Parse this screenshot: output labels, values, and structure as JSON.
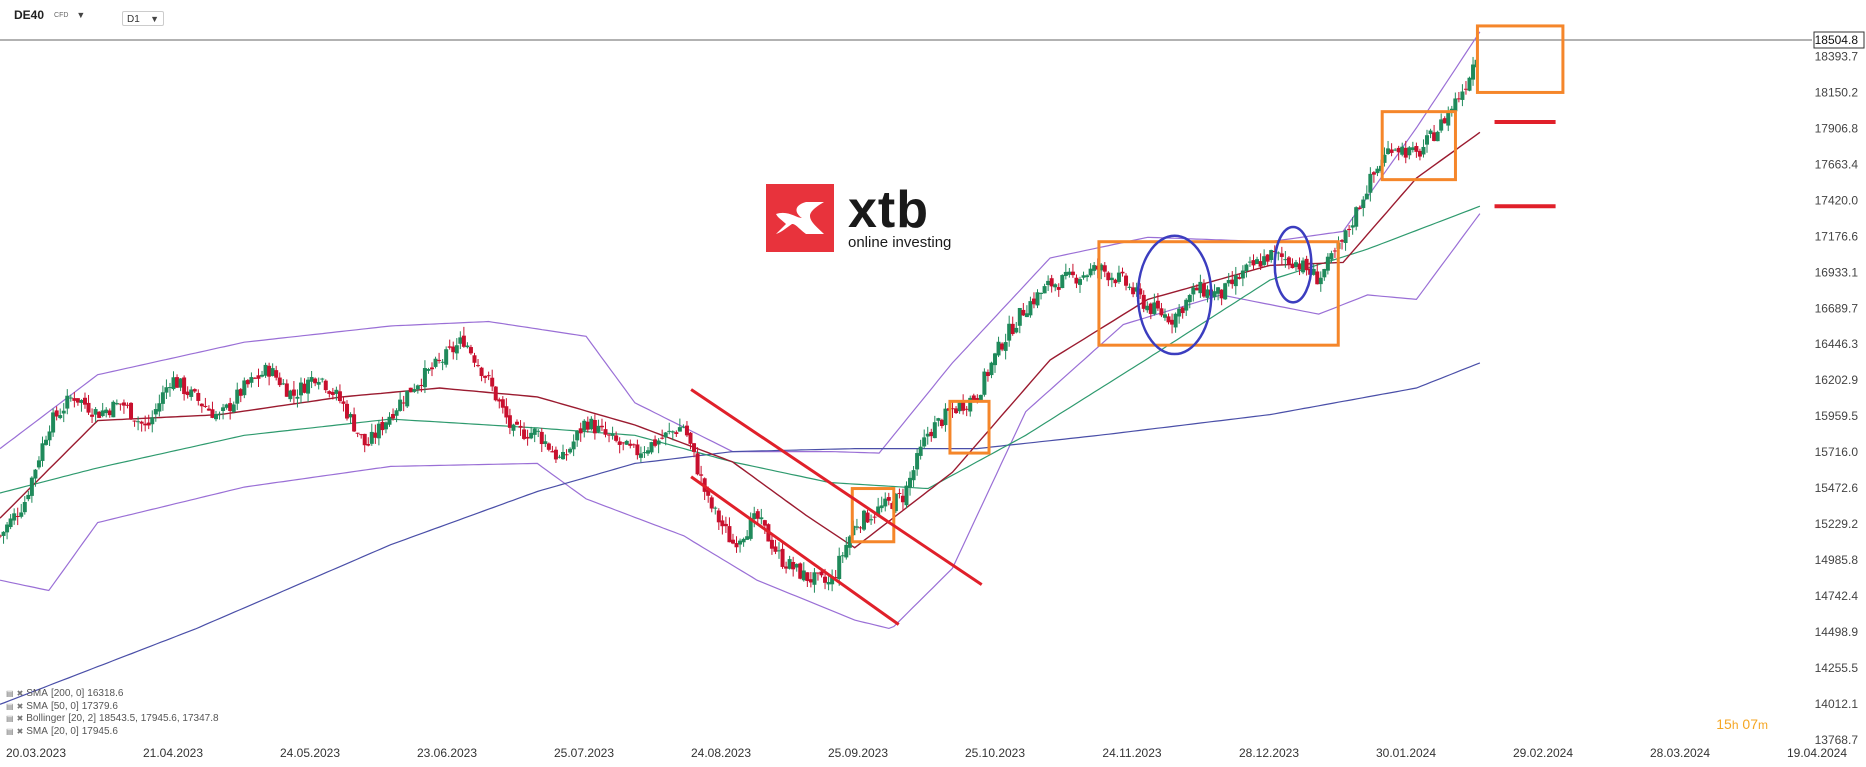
{
  "header": {
    "symbol": "DE40",
    "symbol_tag": "CFD",
    "timeframe": "D1"
  },
  "logo": {
    "name": "xtb",
    "tagline": "online investing"
  },
  "price_label": "18504.8",
  "timer": {
    "hours": "15",
    "h": "h",
    "minutes": "07",
    "m": "m"
  },
  "legend": [
    {
      "name": "SMA",
      "params": "[200, 0]",
      "values": "16318.6"
    },
    {
      "name": "SMA",
      "params": "[50, 0]",
      "values": "17379.6"
    },
    {
      "name": "Bollinger",
      "params": "[20, 2]",
      "values": "18543.5,  17945.6,  17347.8"
    },
    {
      "name": "SMA",
      "params": "[20, 0]",
      "values": "17945.6"
    }
  ],
  "colors": {
    "bull": "#1f8a5b",
    "bear": "#c8102e",
    "sma20": "#9b1b30",
    "sma50": "#2e9a6e",
    "sma200": "#4a4fa8",
    "bollinger": "#9a6fd6",
    "box": "#f5862a",
    "circle": "#3b3dbf",
    "channel": "#e0202a",
    "level": "#e0202a",
    "logo": "#e8333c"
  },
  "chart_data": {
    "type": "candlestick",
    "ylim": [
      13768.7,
      18504.8
    ],
    "y_ticks": [
      "18393.7",
      "18150.2",
      "17906.8",
      "17663.4",
      "17420.0",
      "17176.6",
      "16933.1",
      "16689.7",
      "16446.3",
      "16202.9",
      "15959.5",
      "15716.0",
      "15472.6",
      "15229.2",
      "14985.8",
      "14742.4",
      "14498.9",
      "14255.5",
      "14012.1",
      "13768.7"
    ],
    "x_ticks": [
      "20.03.2023",
      "21.04.2023",
      "24.05.2023",
      "23.06.2023",
      "25.07.2023",
      "24.08.2023",
      "25.09.2023",
      "25.10.2023",
      "24.11.2023",
      "28.12.2023",
      "30.01.2024",
      "29.02.2024",
      "28.03.2024",
      "19.04.2024"
    ],
    "last_price": 18504.8,
    "close_path": [
      [
        0,
        15150
      ],
      [
        10,
        15380
      ],
      [
        20,
        15900
      ],
      [
        30,
        16100
      ],
      [
        40,
        15980
      ],
      [
        50,
        16050
      ],
      [
        60,
        15870
      ],
      [
        70,
        16220
      ],
      [
        80,
        16080
      ],
      [
        90,
        15950
      ],
      [
        100,
        16150
      ],
      [
        110,
        16280
      ],
      [
        120,
        16100
      ],
      [
        130,
        16250
      ],
      [
        140,
        16050
      ],
      [
        150,
        15750
      ],
      [
        160,
        15980
      ],
      [
        170,
        16180
      ],
      [
        180,
        16320
      ],
      [
        190,
        16480
      ],
      [
        200,
        16200
      ],
      [
        210,
        15850
      ],
      [
        220,
        15850
      ],
      [
        230,
        15650
      ],
      [
        240,
        15930
      ],
      [
        250,
        15800
      ],
      [
        260,
        15710
      ],
      [
        270,
        15800
      ],
      [
        280,
        15900
      ],
      [
        290,
        15380
      ],
      [
        300,
        15100
      ],
      [
        310,
        15270
      ],
      [
        320,
        14990
      ],
      [
        330,
        14870
      ],
      [
        340,
        14820
      ],
      [
        350,
        15230
      ],
      [
        360,
        15330
      ],
      [
        370,
        15420
      ],
      [
        380,
        15850
      ],
      [
        390,
        16000
      ],
      [
        400,
        16100
      ],
      [
        410,
        16450
      ],
      [
        420,
        16700
      ],
      [
        430,
        16850
      ],
      [
        440,
        16900
      ],
      [
        450,
        16960
      ],
      [
        460,
        16870
      ],
      [
        470,
        16700
      ],
      [
        480,
        16620
      ],
      [
        490,
        16820
      ],
      [
        500,
        16780
      ],
      [
        510,
        16940
      ],
      [
        520,
        17050
      ],
      [
        530,
        17010
      ],
      [
        540,
        16890
      ],
      [
        550,
        17140
      ],
      [
        560,
        17520
      ],
      [
        570,
        17800
      ],
      [
        580,
        17720
      ],
      [
        590,
        17930
      ],
      [
        600,
        18200
      ],
      [
        606,
        18470
      ]
    ],
    "sma20": [
      [
        0,
        15270
      ],
      [
        40,
        15930
      ],
      [
        90,
        15970
      ],
      [
        140,
        16090
      ],
      [
        180,
        16150
      ],
      [
        220,
        16090
      ],
      [
        260,
        15900
      ],
      [
        300,
        15650
      ],
      [
        330,
        15290
      ],
      [
        350,
        15070
      ],
      [
        390,
        15580
      ],
      [
        430,
        16340
      ],
      [
        470,
        16750
      ],
      [
        520,
        16980
      ],
      [
        550,
        17000
      ],
      [
        580,
        17570
      ],
      [
        606,
        17880
      ]
    ],
    "sma50": [
      [
        0,
        15440
      ],
      [
        40,
        15610
      ],
      [
        100,
        15830
      ],
      [
        160,
        15940
      ],
      [
        220,
        15880
      ],
      [
        260,
        15830
      ],
      [
        300,
        15650
      ],
      [
        340,
        15510
      ],
      [
        380,
        15470
      ],
      [
        420,
        15830
      ],
      [
        470,
        16350
      ],
      [
        520,
        16880
      ],
      [
        560,
        17090
      ],
      [
        606,
        17380
      ]
    ],
    "sma200": [
      [
        0,
        14010
      ],
      [
        80,
        14520
      ],
      [
        160,
        15090
      ],
      [
        220,
        15450
      ],
      [
        260,
        15640
      ],
      [
        300,
        15720
      ],
      [
        350,
        15740
      ],
      [
        400,
        15740
      ],
      [
        450,
        15830
      ],
      [
        520,
        15970
      ],
      [
        580,
        16150
      ],
      [
        606,
        16320
      ]
    ],
    "bollinger_upper": [
      [
        0,
        15740
      ],
      [
        40,
        16240
      ],
      [
        100,
        16460
      ],
      [
        160,
        16570
      ],
      [
        200,
        16600
      ],
      [
        240,
        16500
      ],
      [
        260,
        16050
      ],
      [
        300,
        15720
      ],
      [
        340,
        15720
      ],
      [
        360,
        15710
      ],
      [
        390,
        16320
      ],
      [
        430,
        17030
      ],
      [
        470,
        17170
      ],
      [
        520,
        17140
      ],
      [
        550,
        17210
      ],
      [
        580,
        17910
      ],
      [
        606,
        18560
      ]
    ],
    "bollinger_lower": [
      [
        0,
        14850
      ],
      [
        20,
        14780
      ],
      [
        40,
        15240
      ],
      [
        100,
        15480
      ],
      [
        160,
        15620
      ],
      [
        220,
        15640
      ],
      [
        240,
        15400
      ],
      [
        280,
        15150
      ],
      [
        310,
        14850
      ],
      [
        350,
        14580
      ],
      [
        365,
        14520
      ],
      [
        390,
        14930
      ],
      [
        420,
        15990
      ],
      [
        460,
        16580
      ],
      [
        500,
        16780
      ],
      [
        540,
        16650
      ],
      [
        560,
        16780
      ],
      [
        580,
        16750
      ],
      [
        606,
        17330
      ]
    ],
    "annotations": [
      {
        "kind": "box",
        "x": [
          605,
          640
        ],
        "y": [
          18150,
          18600
        ]
      },
      {
        "kind": "box",
        "x": [
          566,
          596
        ],
        "y": [
          17560,
          18020
        ]
      },
      {
        "kind": "box",
        "x": [
          450,
          548
        ],
        "y": [
          16440,
          17140
        ]
      },
      {
        "kind": "box",
        "x": [
          389,
          405
        ],
        "y": [
          15710,
          16060
        ]
      },
      {
        "kind": "box",
        "x": [
          349,
          366
        ],
        "y": [
          15110,
          15470
        ]
      },
      {
        "kind": "ellipse",
        "x": [
          466,
          496
        ],
        "y": [
          16380,
          17180
        ]
      },
      {
        "kind": "ellipse",
        "x": [
          522,
          537
        ],
        "y": [
          16730,
          17240
        ]
      },
      {
        "kind": "line",
        "x": [
          283,
          402
        ],
        "y": [
          16140,
          14820
        ]
      },
      {
        "kind": "line",
        "x": [
          283,
          368
        ],
        "y": [
          15550,
          14550
        ]
      },
      {
        "kind": "level",
        "x": [
          612,
          637
        ],
        "y": 17950
      },
      {
        "kind": "level",
        "x": [
          612,
          637
        ],
        "y": 17380
      }
    ]
  }
}
